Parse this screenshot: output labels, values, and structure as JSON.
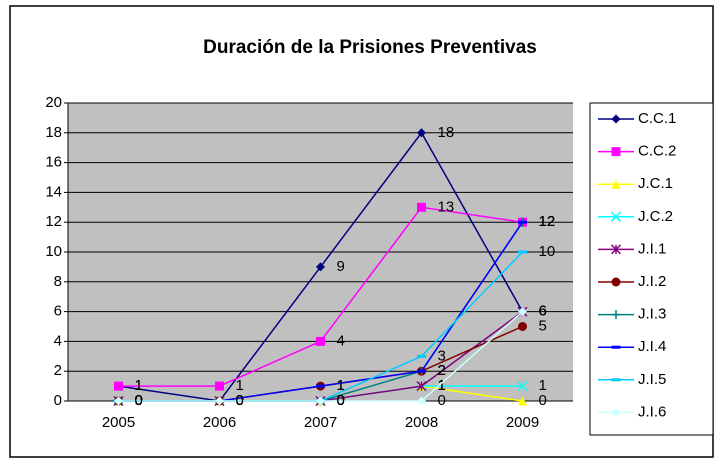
{
  "chart_data": {
    "type": "line",
    "title": "Duración de la Prisiones Preventivas",
    "categories": [
      "2005",
      "2006",
      "2007",
      "2008",
      "2009"
    ],
    "ylim": [
      0,
      20
    ],
    "yticks": [
      0,
      2,
      4,
      6,
      8,
      10,
      12,
      14,
      16,
      18,
      20
    ],
    "grid": true,
    "series": [
      {
        "name": "C.C.1",
        "color": "#000080",
        "marker": "diamond",
        "values": [
          1,
          0,
          9,
          18,
          6
        ]
      },
      {
        "name": "C.C.2",
        "color": "#ff00ff",
        "marker": "square",
        "values": [
          1,
          1,
          4,
          13,
          12
        ]
      },
      {
        "name": "J.C.1",
        "color": "#ffff00",
        "marker": "triangle",
        "values": [
          0,
          0,
          0,
          1,
          0
        ]
      },
      {
        "name": "J.C.2",
        "color": "#00ffff",
        "marker": "x",
        "values": [
          0,
          0,
          0,
          1,
          1
        ]
      },
      {
        "name": "J.I.1",
        "color": "#800080",
        "marker": "star",
        "values": [
          0,
          0,
          0,
          1,
          6
        ]
      },
      {
        "name": "J.I.2",
        "color": "#800000",
        "marker": "circle",
        "values": [
          0,
          0,
          1,
          2,
          5
        ]
      },
      {
        "name": "J.I.3",
        "color": "#008080",
        "marker": "plus",
        "values": [
          0,
          0,
          0,
          2,
          12
        ]
      },
      {
        "name": "J.I.4",
        "color": "#0000ff",
        "marker": "dash",
        "values": [
          0,
          0,
          1,
          2,
          12
        ]
      },
      {
        "name": "J.I.5",
        "color": "#00ccff",
        "marker": "dash",
        "values": [
          0,
          0,
          0,
          3,
          10
        ]
      },
      {
        "name": "J.I.6",
        "color": "#ccffff",
        "marker": "diamond",
        "values": [
          0,
          0,
          0,
          0,
          6
        ]
      }
    ]
  }
}
